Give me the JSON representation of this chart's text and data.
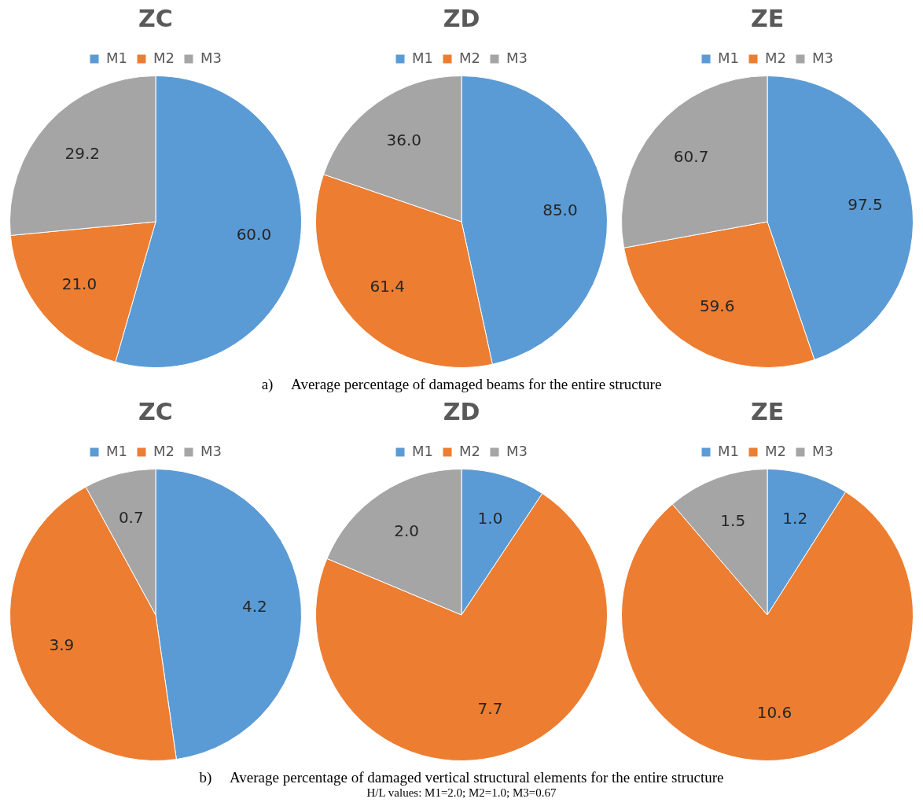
{
  "chart_data": [
    {
      "type": "pie",
      "title": "ZC",
      "categories": [
        "M1",
        "M2",
        "M3"
      ],
      "values": [
        60.0,
        21.0,
        29.2
      ],
      "value_labels": [
        "60.0",
        "21.0",
        "29.2"
      ],
      "colors": [
        "#5b9bd5",
        "#ed7d31",
        "#a5a5a5"
      ],
      "legend": "top"
    },
    {
      "type": "pie",
      "title": "ZD",
      "categories": [
        "M1",
        "M2",
        "M3"
      ],
      "values": [
        85.0,
        61.4,
        36.0
      ],
      "value_labels": [
        "85.0",
        "61.4",
        "36.0"
      ],
      "colors": [
        "#5b9bd5",
        "#ed7d31",
        "#a5a5a5"
      ],
      "legend": "top",
      "annotations": [
        "a)     Average percentage of damaged beams for the entire structure"
      ]
    },
    {
      "type": "pie",
      "title": "ZE",
      "categories": [
        "M1",
        "M2",
        "M3"
      ],
      "values": [
        97.5,
        59.6,
        60.7
      ],
      "value_labels": [
        "97.5",
        "59.6",
        "60.7"
      ],
      "colors": [
        "#5b9bd5",
        "#ed7d31",
        "#a5a5a5"
      ],
      "legend": "top"
    },
    {
      "type": "pie",
      "title": "ZC",
      "categories": [
        "M1",
        "M2",
        "M3"
      ],
      "values": [
        4.2,
        3.9,
        0.7
      ],
      "value_labels": [
        "4.2",
        "3.9",
        "0.7"
      ],
      "colors": [
        "#5b9bd5",
        "#ed7d31",
        "#a5a5a5"
      ],
      "legend": "top"
    },
    {
      "type": "pie",
      "title": "ZD",
      "categories": [
        "M1",
        "M2",
        "M3"
      ],
      "values": [
        1.0,
        7.7,
        2.0
      ],
      "value_labels": [
        "1.0",
        "7.7",
        "2.0"
      ],
      "colors": [
        "#5b9bd5",
        "#ed7d31",
        "#a5a5a5"
      ],
      "legend": "top",
      "annotations": [
        "b)     Average percentage of damaged vertical structural elements for the entire structure",
        "H/L values: M1=2.0; M2=1.0; M3=0.67"
      ]
    },
    {
      "type": "pie",
      "title": "ZE",
      "categories": [
        "M1",
        "M2",
        "M3"
      ],
      "values": [
        1.2,
        10.6,
        1.5
      ],
      "value_labels": [
        "1.2",
        "10.6",
        "1.5"
      ],
      "colors": [
        "#5b9bd5",
        "#ed7d31",
        "#a5a5a5"
      ],
      "legend": "top"
    }
  ]
}
